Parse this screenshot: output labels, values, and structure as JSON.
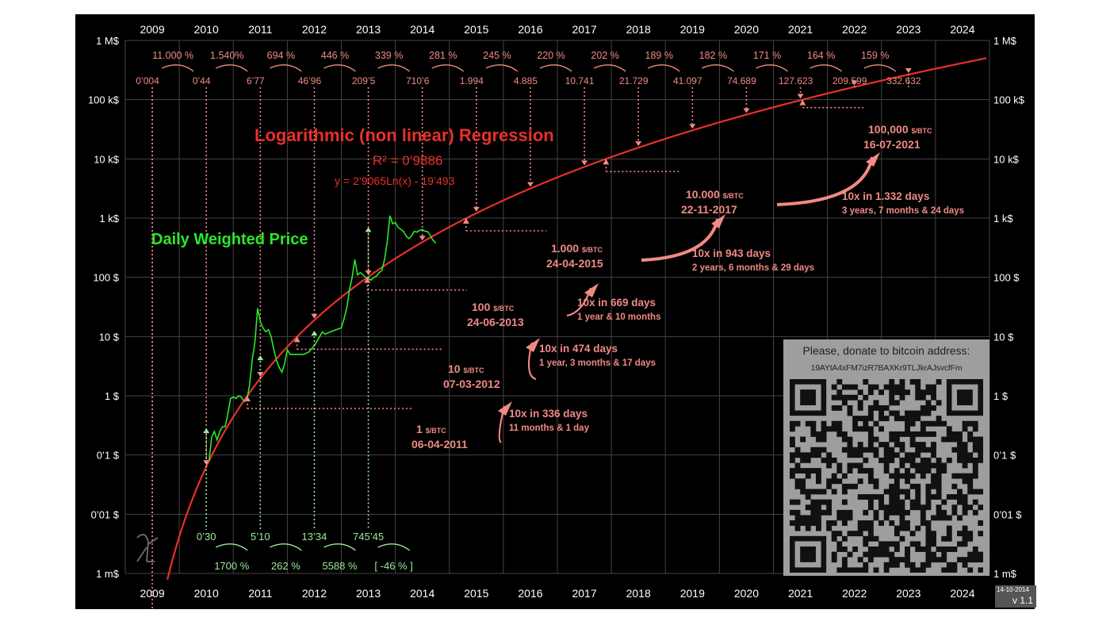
{
  "chart_data": {
    "type": "line",
    "title": "Logarithmic (non linear) Regression",
    "r_squared": "R² = 0’9886",
    "equation": "y = 2’9065Ln(x) - 19’493",
    "series_label": "Daily Weighted Price",
    "x_labels": [
      "2009",
      "2010",
      "2011",
      "2012",
      "2013",
      "2014",
      "2015",
      "2016",
      "2017",
      "2018",
      "2019",
      "2020",
      "2021",
      "2022",
      "2023",
      "2024"
    ],
    "y_labels_left": [
      "1 M$",
      "100 k$",
      "10 k$",
      "1 k$",
      "100 $",
      "10 $",
      "1 $",
      "0’1 $",
      "0’01 $",
      "1 m$"
    ],
    "y_labels_right": [
      "1 M$",
      "100 k$",
      "10 k$",
      "1 k$",
      "100 $",
      "10 $",
      "1 $",
      "0’1 $",
      "0’01 $",
      "1 m$"
    ],
    "yscale": "log",
    "ylim": [
      0.001,
      1000000
    ],
    "xlim": [
      2009,
      2025
    ],
    "price_series": [
      [
        2010.55,
        0.08
      ],
      [
        2010.6,
        0.2
      ],
      [
        2010.65,
        0.25
      ],
      [
        2010.7,
        0.18
      ],
      [
        2010.75,
        0.25
      ],
      [
        2010.8,
        0.3
      ],
      [
        2010.85,
        0.3
      ],
      [
        2010.9,
        0.5
      ],
      [
        2010.95,
        0.9
      ],
      [
        2011.0,
        0.95
      ],
      [
        2011.05,
        0.9
      ],
      [
        2011.1,
        1.0
      ],
      [
        2011.15,
        0.95
      ],
      [
        2011.2,
        0.8
      ],
      [
        2011.25,
        0.85
      ],
      [
        2011.3,
        1.5
      ],
      [
        2011.35,
        4
      ],
      [
        2011.4,
        8
      ],
      [
        2011.45,
        30
      ],
      [
        2011.5,
        18
      ],
      [
        2011.55,
        14
      ],
      [
        2011.6,
        12
      ],
      [
        2011.65,
        13
      ],
      [
        2011.7,
        10
      ],
      [
        2011.75,
        6
      ],
      [
        2011.8,
        4
      ],
      [
        2011.85,
        3
      ],
      [
        2011.9,
        2.5
      ],
      [
        2011.95,
        3.5
      ],
      [
        2012.0,
        6
      ],
      [
        2012.05,
        5
      ],
      [
        2012.1,
        5
      ],
      [
        2012.2,
        5
      ],
      [
        2012.3,
        5
      ],
      [
        2012.4,
        5.5
      ],
      [
        2012.5,
        7
      ],
      [
        2012.6,
        10
      ],
      [
        2012.65,
        12
      ],
      [
        2012.7,
        11
      ],
      [
        2012.8,
        12
      ],
      [
        2012.9,
        13
      ],
      [
        2013.0,
        14
      ],
      [
        2013.05,
        20
      ],
      [
        2013.1,
        30
      ],
      [
        2013.15,
        60
      ],
      [
        2013.2,
        100
      ],
      [
        2013.25,
        200
      ],
      [
        2013.28,
        140
      ],
      [
        2013.3,
        110
      ],
      [
        2013.35,
        120
      ],
      [
        2013.4,
        110
      ],
      [
        2013.45,
        100
      ],
      [
        2013.5,
        95
      ],
      [
        2013.55,
        90
      ],
      [
        2013.6,
        100
      ],
      [
        2013.65,
        105
      ],
      [
        2013.7,
        120
      ],
      [
        2013.75,
        130
      ],
      [
        2013.8,
        200
      ],
      [
        2013.85,
        400
      ],
      [
        2013.9,
        1100
      ],
      [
        2013.95,
        800
      ],
      [
        2014.0,
        850
      ],
      [
        2014.05,
        700
      ],
      [
        2014.1,
        650
      ],
      [
        2014.15,
        600
      ],
      [
        2014.2,
        500
      ],
      [
        2014.25,
        450
      ],
      [
        2014.3,
        500
      ],
      [
        2014.35,
        600
      ],
      [
        2014.4,
        580
      ],
      [
        2014.45,
        620
      ],
      [
        2014.5,
        640
      ],
      [
        2014.55,
        600
      ],
      [
        2014.6,
        590
      ],
      [
        2014.65,
        500
      ],
      [
        2014.7,
        420
      ],
      [
        2014.75,
        380
      ]
    ],
    "milestones": [
      {
        "price": "1",
        "unit": "$/BTC",
        "date": "06-04-2011",
        "gap": "10x in 336 days",
        "gap2": "11 months & 1 day"
      },
      {
        "price": "10",
        "unit": "$/BTC",
        "date": "07-03-2012",
        "gap": "10x in 474 days",
        "gap2": "1 year, 3 months & 17 days"
      },
      {
        "price": "100",
        "unit": "$/BTC",
        "date": "24-06-2013",
        "gap": "10x in 669 days",
        "gap2": "1 year & 10 months"
      },
      {
        "price": "1.000",
        "unit": "$/BTC",
        "date": "24-04-2015",
        "gap": "10x in 943 days",
        "gap2": "2 years, 6 months & 29 days"
      },
      {
        "price": "10.000",
        "unit": "$/BTC",
        "date": "22-11-2017",
        "gap": "10x  in 1.332 days",
        "gap2": "3 years, 7 months & 24 days"
      },
      {
        "price": "100,000",
        "unit": "$/BTC",
        "date": "16-07-2021",
        "gap": "",
        "gap2": ""
      }
    ],
    "predicted_values": [
      "0’004",
      "0’44",
      "6’77",
      "46’96",
      "209’5",
      "710’6",
      "1.994",
      "4.885",
      "10.741",
      "21.729",
      "41.097",
      "74.689",
      "127.623",
      "209.599",
      "332.632"
    ],
    "predicted_growth": [
      "11.000 %",
      "1.540%",
      "694 %",
      "446 %",
      "339 %",
      "281 %",
      "245 %",
      "220 %",
      "202 %",
      "189 %",
      "182 %",
      "171 %",
      "164 %",
      "159 %"
    ],
    "actual_values": [
      "0’30",
      "5’10",
      "13’34",
      "745’45"
    ],
    "actual_growth": [
      "1700 %",
      "262 %",
      "5588 %",
      "[ -46 % ]"
    ],
    "colors": {
      "regression": "#e8302b",
      "labels": "#f08a84",
      "price": "#2ae82a",
      "green_text": "#9bea9b",
      "background": "#000000",
      "grid": "#444444"
    }
  },
  "donate": {
    "title": "Please, donate to bitcoin address:",
    "address": "19AYtA4xFM7izR7BAXKr9TLJkrAJsvcfFm"
  },
  "version": {
    "date": "14-10-2014",
    "label": "v 1.1"
  }
}
